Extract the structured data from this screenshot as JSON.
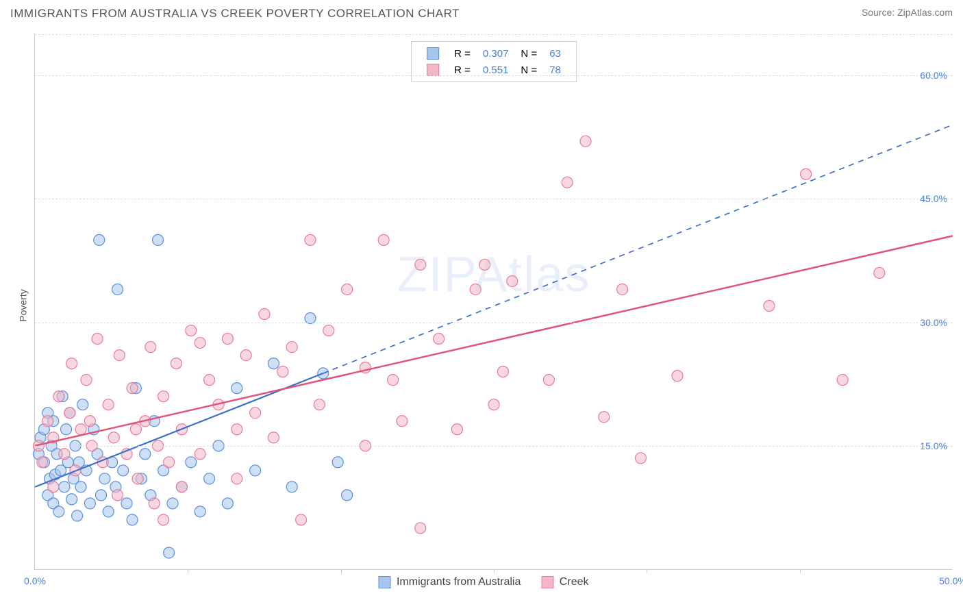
{
  "title": "IMMIGRANTS FROM AUSTRALIA VS CREEK POVERTY CORRELATION CHART",
  "source": "Source: ZipAtlas.com",
  "ylabel": "Poverty",
  "watermark": "ZIPAtlas",
  "chart": {
    "type": "scatter",
    "xlim": [
      0,
      50
    ],
    "ylim": [
      0,
      65
    ],
    "x_ticks": [
      0,
      50
    ],
    "x_tick_labels": [
      "0.0%",
      "50.0%"
    ],
    "x_minor_ticks": [
      8.33,
      16.67,
      25.0,
      33.33,
      41.67
    ],
    "y_grid": [
      15,
      30,
      45,
      60
    ],
    "y_tick_labels": [
      "15.0%",
      "30.0%",
      "45.0%",
      "60.0%"
    ],
    "background_color": "#ffffff",
    "grid_color": "#dddddd",
    "axis_color": "#cccccc",
    "marker_radius": 8,
    "marker_opacity": 0.55,
    "marker_stroke_width": 1.2,
    "series": [
      {
        "name": "Immigrants from Australia",
        "color_fill": "#a8c5ec",
        "color_stroke": "#5a8fd8",
        "R": "0.307",
        "N": "63",
        "trend": {
          "x1": 0,
          "y1": 10,
          "x2": 15.7,
          "y2": 23.8,
          "dash_x2": 50,
          "dash_y2": 54,
          "color": "#3b6fc8",
          "width": 2.2
        },
        "points": [
          [
            0.2,
            14
          ],
          [
            0.3,
            16
          ],
          [
            0.5,
            13
          ],
          [
            0.5,
            17
          ],
          [
            0.7,
            9
          ],
          [
            0.7,
            19
          ],
          [
            0.8,
            11
          ],
          [
            0.9,
            15
          ],
          [
            1.0,
            8
          ],
          [
            1.0,
            18
          ],
          [
            1.1,
            11.5
          ],
          [
            1.2,
            14
          ],
          [
            1.3,
            7
          ],
          [
            1.4,
            12
          ],
          [
            1.5,
            21
          ],
          [
            1.6,
            10
          ],
          [
            1.7,
            17
          ],
          [
            1.8,
            13
          ],
          [
            1.9,
            19
          ],
          [
            2.0,
            8.5
          ],
          [
            2.1,
            11
          ],
          [
            2.2,
            15
          ],
          [
            2.3,
            6.5
          ],
          [
            2.4,
            13
          ],
          [
            2.5,
            10
          ],
          [
            2.6,
            20
          ],
          [
            2.8,
            12
          ],
          [
            3.0,
            8
          ],
          [
            3.2,
            17
          ],
          [
            3.4,
            14
          ],
          [
            3.5,
            40
          ],
          [
            3.6,
            9
          ],
          [
            3.8,
            11
          ],
          [
            4.0,
            7
          ],
          [
            4.2,
            13
          ],
          [
            4.4,
            10
          ],
          [
            4.5,
            34
          ],
          [
            4.8,
            12
          ],
          [
            5.0,
            8
          ],
          [
            5.3,
            6
          ],
          [
            5.5,
            22
          ],
          [
            5.8,
            11
          ],
          [
            6.0,
            14
          ],
          [
            6.3,
            9
          ],
          [
            6.5,
            18
          ],
          [
            6.7,
            40
          ],
          [
            7.0,
            12
          ],
          [
            7.3,
            2
          ],
          [
            7.5,
            8
          ],
          [
            8.0,
            10
          ],
          [
            8.5,
            13
          ],
          [
            9.0,
            7
          ],
          [
            9.5,
            11
          ],
          [
            10.0,
            15
          ],
          [
            10.5,
            8
          ],
          [
            11.0,
            22
          ],
          [
            12.0,
            12
          ],
          [
            13.0,
            25
          ],
          [
            14.0,
            10
          ],
          [
            15.0,
            30.5
          ],
          [
            15.7,
            23.8
          ],
          [
            16.5,
            13
          ],
          [
            17.0,
            9
          ]
        ]
      },
      {
        "name": "Creek",
        "color_fill": "#f2b8c6",
        "color_stroke": "#e87a9a",
        "R": "0.551",
        "N": "78",
        "trend": {
          "x1": 0,
          "y1": 15,
          "x2": 50,
          "y2": 40.5,
          "color": "#e0557a",
          "width": 2.5
        },
        "points": [
          [
            0.2,
            15
          ],
          [
            0.4,
            13
          ],
          [
            0.7,
            18
          ],
          [
            1.0,
            16
          ],
          [
            1.3,
            21
          ],
          [
            1.6,
            14
          ],
          [
            1.9,
            19
          ],
          [
            2.2,
            12
          ],
          [
            2.5,
            17
          ],
          [
            2.8,
            23
          ],
          [
            3.1,
            15
          ],
          [
            3.4,
            28
          ],
          [
            3.7,
            13
          ],
          [
            4.0,
            20
          ],
          [
            4.3,
            16
          ],
          [
            4.6,
            26
          ],
          [
            5.0,
            14
          ],
          [
            5.3,
            22
          ],
          [
            5.6,
            11
          ],
          [
            6.0,
            18
          ],
          [
            6.3,
            27
          ],
          [
            6.7,
            15
          ],
          [
            7.0,
            21
          ],
          [
            7.3,
            13
          ],
          [
            7.7,
            25
          ],
          [
            8.0,
            17
          ],
          [
            8.5,
            29
          ],
          [
            9.0,
            14
          ],
          [
            9.5,
            23
          ],
          [
            10.0,
            20
          ],
          [
            10.5,
            28
          ],
          [
            11.0,
            11
          ],
          [
            11.5,
            26
          ],
          [
            12.0,
            19
          ],
          [
            12.5,
            31
          ],
          [
            13.0,
            16
          ],
          [
            13.5,
            24
          ],
          [
            14.0,
            27
          ],
          [
            15.0,
            40
          ],
          [
            15.5,
            20
          ],
          [
            16.0,
            29
          ],
          [
            17.0,
            34
          ],
          [
            18.0,
            24.5
          ],
          [
            19.0,
            40
          ],
          [
            20.0,
            18
          ],
          [
            21.0,
            37
          ],
          [
            22.0,
            28
          ],
          [
            23.0,
            17
          ],
          [
            24.0,
            34
          ],
          [
            24.5,
            37
          ],
          [
            25.0,
            20
          ],
          [
            26.0,
            35
          ],
          [
            28.0,
            23
          ],
          [
            29.0,
            47
          ],
          [
            30.0,
            52
          ],
          [
            31.0,
            18.5
          ],
          [
            32.0,
            34
          ],
          [
            33.0,
            13.5
          ],
          [
            35.0,
            23.5
          ],
          [
            40.0,
            32
          ],
          [
            42.0,
            48
          ],
          [
            44.0,
            23
          ],
          [
            46.0,
            36
          ],
          [
            4.5,
            9
          ],
          [
            6.5,
            8
          ],
          [
            8.0,
            10
          ],
          [
            2.0,
            25
          ],
          [
            3.0,
            18
          ],
          [
            9.0,
            27.5
          ],
          [
            5.5,
            17
          ],
          [
            7.0,
            6
          ],
          [
            11.0,
            17
          ],
          [
            1.0,
            10
          ],
          [
            18.0,
            15
          ],
          [
            14.5,
            6
          ],
          [
            21.0,
            5
          ],
          [
            19.5,
            23
          ],
          [
            25.5,
            24
          ]
        ]
      }
    ]
  },
  "legend_top": {
    "R_label": "R =",
    "N_label": "N ="
  },
  "legend_bottom": {
    "labels": [
      "Immigrants from Australia",
      "Creek"
    ]
  }
}
